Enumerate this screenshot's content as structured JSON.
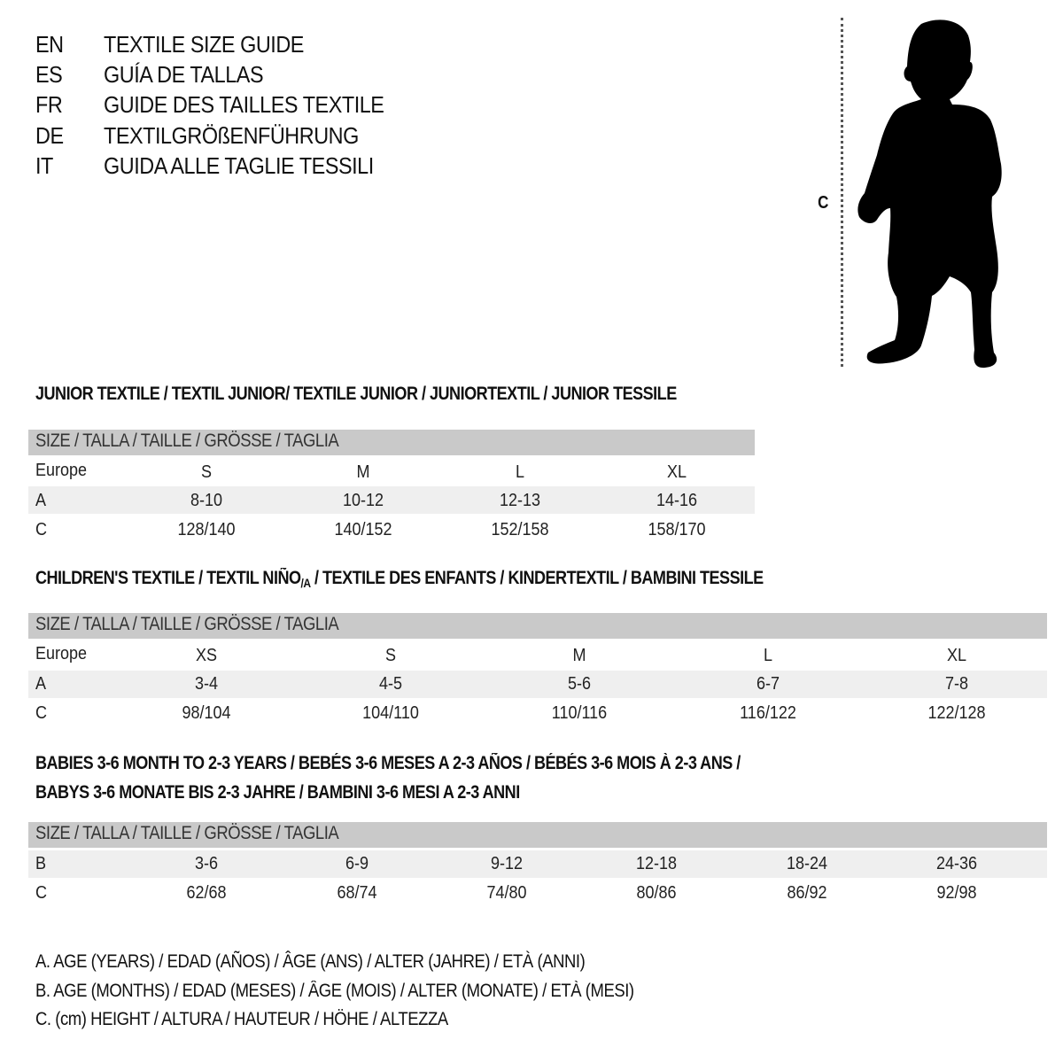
{
  "languages": [
    {
      "code": "EN",
      "title": "TEXTILE SIZE GUIDE"
    },
    {
      "code": "ES",
      "title": "GUÍA DE TALLAS"
    },
    {
      "code": "FR",
      "title": "GUIDE DES TAILLES TEXTILE"
    },
    {
      "code": "DE",
      "title": "TEXTILGRÖßENFÜHRUNG"
    },
    {
      "code": "IT",
      "title": "GUIDA ALLE TAGLIE TESSILI"
    }
  ],
  "figure": {
    "height_label": "C",
    "icon": "child-silhouette"
  },
  "colors": {
    "header_bg": "#c9c9c9",
    "band_bg": "#efefef"
  },
  "junior": {
    "heading": "JUNIOR TEXTILE / TEXTIL JUNIOR/ TEXTILE JUNIOR / JUNIORTEXTIL / JUNIOR TESSILE",
    "table_header": "SIZE / TALLA / TAILLE / GRÖSSE / TAGLIA",
    "rows": [
      {
        "label": "Europe",
        "values": [
          "S",
          "M",
          "L",
          "XL"
        ]
      },
      {
        "label": "A",
        "values": [
          "8-10",
          "10-12",
          "12-13",
          "14-16"
        ]
      },
      {
        "label": "C",
        "values": [
          "128/140",
          "140/152",
          "152/158",
          "158/170"
        ]
      }
    ]
  },
  "children": {
    "heading_part1": "CHILDREN'S TEXTILE / TEXTIL NIÑO",
    "heading_sub": "/A",
    "heading_part2": " / TEXTILE DES ENFANTS / KINDERTEXTIL / BAMBINI TESSILE",
    "table_header": "SIZE / TALLA / TAILLE / GRÖSSE / TAGLIA",
    "rows": [
      {
        "label": "Europe",
        "values": [
          "XS",
          "S",
          "M",
          "L",
          "XL"
        ]
      },
      {
        "label": "A",
        "values": [
          "3-4",
          "4-5",
          "5-6",
          "6-7",
          "7-8"
        ]
      },
      {
        "label": "C",
        "values": [
          "98/104",
          "104/110",
          "110/116",
          "116/122",
          "122/128"
        ]
      }
    ]
  },
  "babies": {
    "heading_line1": "BABIES 3-6 MONTH TO 2-3 YEARS / BEBÉS 3-6 MESES A 2-3 AÑOS / BÉBÉS 3-6 MOIS À 2-3 ANS /",
    "heading_line2": "BABYS 3-6 MONATE BIS 2-3 JAHRE / BAMBINI 3-6 MESI A 2-3 ANNI",
    "table_header": "SIZE / TALLA / TAILLE / GRÖSSE / TAGLIA",
    "rows": [
      {
        "label": "B",
        "values": [
          "3-6",
          "6-9",
          "9-12",
          "12-18",
          "18-24",
          "24-36"
        ]
      },
      {
        "label": "C",
        "values": [
          "62/68",
          "68/74",
          "74/80",
          "80/86",
          "86/92",
          "92/98"
        ]
      }
    ]
  },
  "legend": [
    "A. AGE (YEARS) / EDAD (AÑOS) / ÂGE (ANS) / ALTER (JAHRE) / ETÀ (ANNI)",
    "B. AGE (MONTHS) / EDAD (MESES) / ÂGE (MOIS) / ALTER (MONATE) / ETÀ (MESI)",
    "C. (cm) HEIGHT / ALTURA / HAUTEUR / HÖHE / ALTEZZA"
  ]
}
